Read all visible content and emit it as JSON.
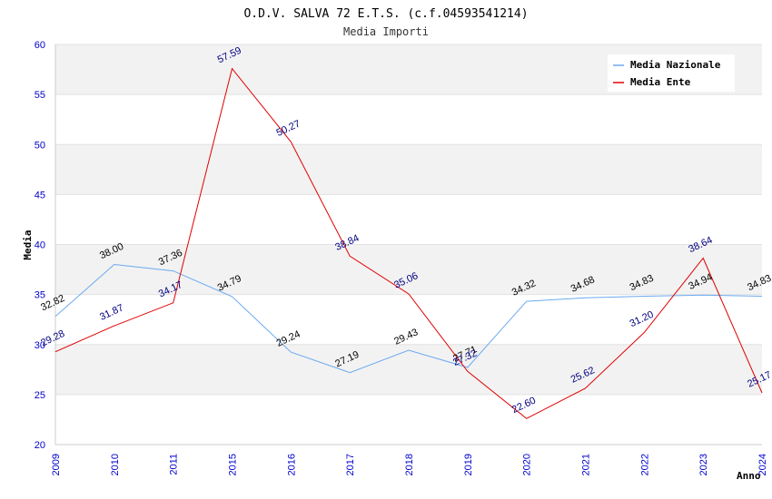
{
  "chart_data": {
    "type": "line",
    "title": "O.D.V. SALVA 72 E.T.S. (c.f.04593541214)",
    "subtitle": "Media Importi",
    "xlabel": "Anno",
    "ylabel": "Media",
    "ylim": [
      20,
      60
    ],
    "yticks": [
      "20",
      "25",
      "30",
      "35",
      "40",
      "45",
      "50",
      "55",
      "60"
    ],
    "categories": [
      "2009",
      "2010",
      "2011",
      "2015",
      "2016",
      "2017",
      "2018",
      "2019",
      "2020",
      "2021",
      "2022",
      "2023",
      "2024"
    ],
    "grid": true,
    "legend_position": "top-right",
    "series": [
      {
        "name": "Media Nazionale",
        "color": "#6aaaf0",
        "values": [
          32.82,
          38.0,
          37.36,
          34.79,
          29.24,
          27.19,
          29.43,
          27.71,
          34.32,
          34.68,
          34.83,
          34.94,
          34.83
        ],
        "labels": [
          "32.82",
          "38.00",
          "37.36",
          "34.79",
          "29.24",
          "27.19",
          "29.43",
          "27.71",
          "34.32",
          "34.68",
          "34.83",
          "34.94",
          "34.83"
        ]
      },
      {
        "name": "Media Ente",
        "color": "#e00000",
        "values": [
          29.28,
          31.87,
          34.17,
          57.59,
          50.27,
          38.84,
          35.06,
          27.32,
          22.6,
          25.62,
          31.2,
          38.64,
          25.17
        ],
        "labels": [
          "29.28",
          "31.87",
          "34.17",
          "57.59",
          "50.27",
          "38.84",
          "35.06",
          "27.32",
          "22.60",
          "25.62",
          "31.20",
          "38.64",
          "25.17"
        ]
      }
    ]
  }
}
